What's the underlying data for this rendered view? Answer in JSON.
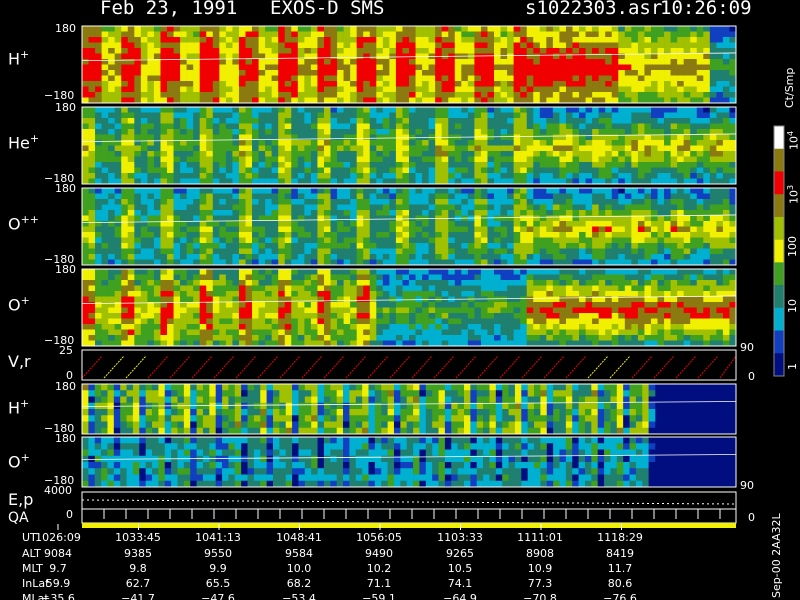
{
  "header": {
    "date": "Feb 23, 1991",
    "instrument": "EXOS-D SMS",
    "file": "s1022303.asr",
    "time": "10:26:09"
  },
  "panels": [
    {
      "ion": "H",
      "charge": "+",
      "ytop": "180",
      "ybot": "−180"
    },
    {
      "ion": "He",
      "charge": "+",
      "ytop": "180",
      "ybot": "−180"
    },
    {
      "ion": "O",
      "charge": "++",
      "ytop": "180",
      "ybot": "−180"
    },
    {
      "ion": "O",
      "charge": "+",
      "ytop": "180",
      "ybot": "−180"
    }
  ],
  "vr_panel": {
    "label": "V,r",
    "ytop": "25",
    "ybot": "0",
    "right_top": "90",
    "right_bot": "0"
  },
  "lower_panels": [
    {
      "ion": "H",
      "charge": "+",
      "ytop": "180",
      "ybot": "−180"
    },
    {
      "ion": "O",
      "charge": "+",
      "ytop": "180",
      "ybot": "−180"
    }
  ],
  "lower_right": {
    "top": "90",
    "bot": "0"
  },
  "ep_panel": {
    "label1": "E,p",
    "label2": "QA",
    "ytop": "4000",
    "ybot": "0"
  },
  "colorbar": {
    "unit": "Ct/Smp",
    "ticks": [
      {
        "label": "10",
        "exp": "4"
      },
      {
        "label": "10",
        "exp": "3"
      },
      {
        "label": "100",
        "exp": ""
      },
      {
        "label": "10",
        "exp": ""
      },
      {
        "label": "1",
        "exp": ""
      }
    ]
  },
  "footer_note": "Sep-00 2AA32L",
  "ephemeris": {
    "labels": [
      "UT",
      "ALT",
      "MLT",
      "InLat",
      "MLat"
    ],
    "columns": [
      [
        "1026:09",
        "9084",
        "9.7",
        "59.9",
        "−35.6"
      ],
      [
        "1033:45",
        "9385",
        "9.8",
        "62.7",
        "−41.7"
      ],
      [
        "1041:13",
        "9550",
        "9.9",
        "65.5",
        "−47.6"
      ],
      [
        "1048:41",
        "9584",
        "10.0",
        "68.2",
        "−53.4"
      ],
      [
        "1056:05",
        "9490",
        "10.2",
        "71.1",
        "−59.1"
      ],
      [
        "1103:33",
        "9265",
        "10.5",
        "74.1",
        "−64.9"
      ],
      [
        "1111:01",
        "8908",
        "10.9",
        "77.3",
        "−70.8"
      ],
      [
        "1118:29",
        "8419",
        "11.7",
        "80.6",
        "−76.6"
      ]
    ]
  },
  "chart_data": {
    "type": "heatmap",
    "x_tick_labels": [
      "1026:09",
      "1033:45",
      "1041:13",
      "1048:41",
      "1056:05",
      "1103:33",
      "1111:01",
      "1118:29"
    ],
    "ylim_pitch": [
      -180,
      180
    ],
    "ylim_vr": [
      0,
      25
    ],
    "ylim_energy": [
      0,
      4000
    ],
    "colorbar_ticks": [
      "1",
      "10",
      "100",
      "10^3",
      "10^4"
    ],
    "colors": {
      "dark_blue": "#000e80",
      "blue": "#1040c0",
      "cyan": "#00b0d0",
      "teal": "#208070",
      "green": "#40a020",
      "yellow_green": "#a0c000",
      "yellow": "#f0f000",
      "olive": "#8a7a10",
      "red": "#f00000",
      "white": "#ffffff"
    }
  }
}
